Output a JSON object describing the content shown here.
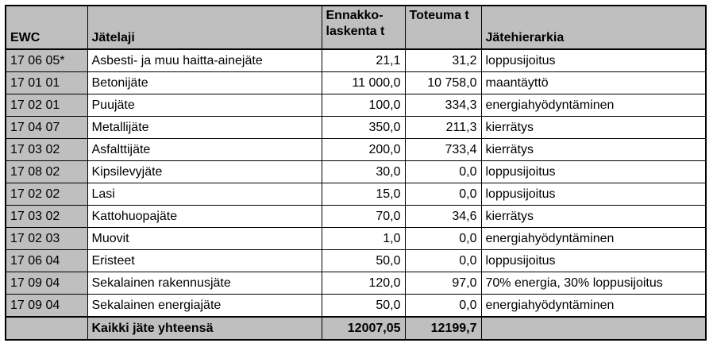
{
  "table": {
    "headers": {
      "ewc": "EWC",
      "jatelaji": "Jätelaji",
      "ennakko": "Ennakko-laskenta t",
      "toteuma": "Toteuma t",
      "hierarkia": "Jätehierarkia"
    },
    "rows": [
      {
        "ewc": "17 06 05*",
        "jatelaji": "Asbesti- ja muu haitta-ainejäte",
        "ennakko": "21,1",
        "toteuma": "31,2",
        "hierarkia": "loppusijoitus"
      },
      {
        "ewc": "17 01 01",
        "jatelaji": "Betonijäte",
        "ennakko": "11 000,0",
        "toteuma": "10 758,0",
        "hierarkia": "maantäyttö"
      },
      {
        "ewc": "17 02 01",
        "jatelaji": "Puujäte",
        "ennakko": "100,0",
        "toteuma": "334,3",
        "hierarkia": "energiahyödyntäminen"
      },
      {
        "ewc": "17 04 07",
        "jatelaji": "Metallijäte",
        "ennakko": "350,0",
        "toteuma": "211,3",
        "hierarkia": "kierrätys"
      },
      {
        "ewc": "17 03 02",
        "jatelaji": "Asfalttijäte",
        "ennakko": "200,0",
        "toteuma": "733,4",
        "hierarkia": "kierrätys"
      },
      {
        "ewc": "17 08 02",
        "jatelaji": "Kipsilevyjäte",
        "ennakko": "30,0",
        "toteuma": "0,0",
        "hierarkia": "loppusijoitus"
      },
      {
        "ewc": "17 02 02",
        "jatelaji": "Lasi",
        "ennakko": "15,0",
        "toteuma": "0,0",
        "hierarkia": "loppusijoitus"
      },
      {
        "ewc": "17 03 02",
        "jatelaji": "Kattohuopajäte",
        "ennakko": "70,0",
        "toteuma": "34,6",
        "hierarkia": "kierrätys"
      },
      {
        "ewc": "17 02 03",
        "jatelaji": "Muovit",
        "ennakko": "1,0",
        "toteuma": "0,0",
        "hierarkia": "energiahyödyntäminen"
      },
      {
        "ewc": "17 06 04",
        "jatelaji": "Eristeet",
        "ennakko": "50,0",
        "toteuma": "0,0",
        "hierarkia": "loppusijoitus"
      },
      {
        "ewc": "17 09 04",
        "jatelaji": "Sekalainen rakennusjäte",
        "ennakko": "120,0",
        "toteuma": "97,0",
        "hierarkia": "70% energia, 30% loppusijoitus"
      },
      {
        "ewc": "17 09 04",
        "jatelaji": "Sekalainen energiajäte",
        "ennakko": "50,0",
        "toteuma": "0,0",
        "hierarkia": "energiahyödyntäminen"
      }
    ],
    "total": {
      "ewc": "",
      "label": "Kaikki jäte yhteensä",
      "ennakko": "12007,05",
      "toteuma": "12199,7",
      "hierarkia": ""
    }
  }
}
